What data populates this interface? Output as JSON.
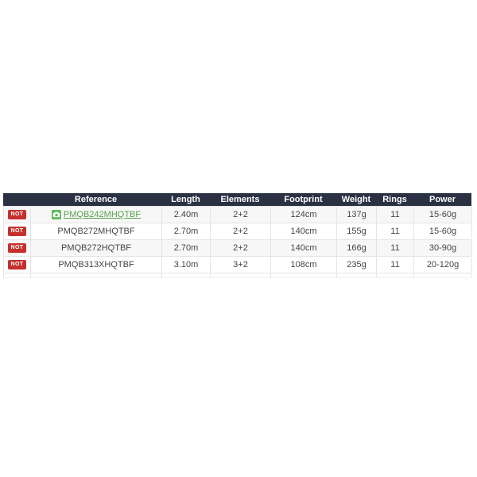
{
  "page": {
    "background": "#ffffff"
  },
  "table": {
    "columns": [
      {
        "key": "flag",
        "label": ""
      },
      {
        "key": "reference",
        "label": "Reference"
      },
      {
        "key": "length",
        "label": "Length"
      },
      {
        "key": "elements",
        "label": "Elements"
      },
      {
        "key": "footprint",
        "label": "Footprint"
      },
      {
        "key": "weight",
        "label": "Weight"
      },
      {
        "key": "rings",
        "label": "Rings"
      },
      {
        "key": "power",
        "label": "Power"
      }
    ],
    "rows": [
      {
        "flag": "NOT",
        "reference": "PMQB242MHQTBF",
        "has_photo_icon": true,
        "is_link": true,
        "length": "2.40m",
        "elements": "2+2",
        "footprint": "124cm",
        "weight": "137g",
        "rings": "11",
        "power": "15-60g"
      },
      {
        "flag": "NOT",
        "reference": "PMQB272MHQTBF",
        "has_photo_icon": false,
        "is_link": false,
        "length": "2.70m",
        "elements": "2+2",
        "footprint": "140cm",
        "weight": "155g",
        "rings": "11",
        "power": "15-60g"
      },
      {
        "flag": "NOT",
        "reference": "PMQB272HQTBF",
        "has_photo_icon": false,
        "is_link": false,
        "length": "2.70m",
        "elements": "2+2",
        "footprint": "140cm",
        "weight": "166g",
        "rings": "11",
        "power": "30-90g"
      },
      {
        "flag": "NOT",
        "reference": "PMQB313XHQTBF",
        "has_photo_icon": false,
        "is_link": false,
        "length": "3.10m",
        "elements": "3+2",
        "footprint": "108cm",
        "weight": "235g",
        "rings": "11",
        "power": "20-120g"
      }
    ],
    "colors": {
      "header_bg": "#2a3142",
      "header_text": "#ffffff",
      "badge_bg": "#c4302c",
      "badge_text": "#ffffff",
      "link_green": "#56a149",
      "camera_icon_green": "#5cb85c",
      "row_stripe": "#f7f7f8",
      "border": "#e5e5e6",
      "body_text": "#444444"
    }
  }
}
